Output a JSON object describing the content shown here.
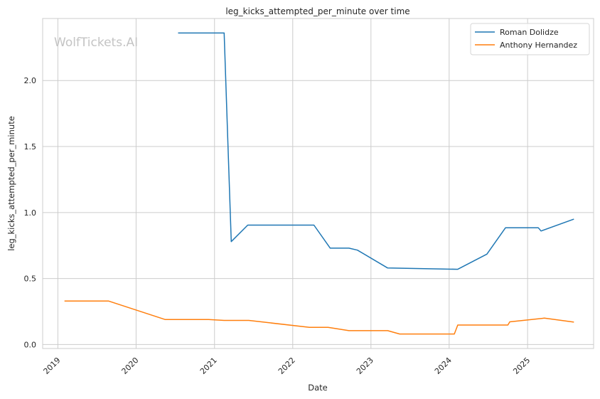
{
  "chart_data": {
    "type": "line",
    "title": "leg_kicks_attempted_per_minute over time",
    "xlabel": "Date",
    "ylabel": "leg_kicks_attempted_per_minute",
    "watermark": "WolfTickets.AI",
    "x_ticks": [
      "2019",
      "2020",
      "2021",
      "2022",
      "2023",
      "2024",
      "2025"
    ],
    "y_ticks": [
      "0.0",
      "0.5",
      "1.0",
      "1.5",
      "2.0"
    ],
    "xlim": [
      "2018-10-22",
      "2025-11-05"
    ],
    "ylim": [
      -0.03,
      2.47
    ],
    "grid": true,
    "legend_position": "top-right",
    "series": [
      {
        "name": "Roman Dolidze",
        "color": "#1f77b4",
        "points": [
          [
            "2020-07-15",
            2.36
          ],
          [
            "2021-02-15",
            2.36
          ],
          [
            "2021-03-20",
            0.78
          ],
          [
            "2021-06-05",
            0.905
          ],
          [
            "2022-04-10",
            0.905
          ],
          [
            "2022-06-25",
            0.73
          ],
          [
            "2022-09-20",
            0.73
          ],
          [
            "2022-10-30",
            0.715
          ],
          [
            "2023-03-20",
            0.58
          ],
          [
            "2024-02-10",
            0.57
          ],
          [
            "2024-06-25",
            0.685
          ],
          [
            "2024-09-20",
            0.885
          ],
          [
            "2025-02-20",
            0.885
          ],
          [
            "2025-03-05",
            0.86
          ],
          [
            "2025-08-05",
            0.95
          ]
        ]
      },
      {
        "name": "Anthony Hernandez",
        "color": "#ff7f0e",
        "points": [
          [
            "2019-02-01",
            0.33
          ],
          [
            "2019-08-25",
            0.33
          ],
          [
            "2020-05-15",
            0.19
          ],
          [
            "2020-12-05",
            0.19
          ],
          [
            "2021-02-15",
            0.183
          ],
          [
            "2021-06-10",
            0.183
          ],
          [
            "2022-03-20",
            0.13
          ],
          [
            "2022-06-15",
            0.13
          ],
          [
            "2022-09-20",
            0.105
          ],
          [
            "2023-03-20",
            0.105
          ],
          [
            "2023-05-15",
            0.08
          ],
          [
            "2024-01-25",
            0.08
          ],
          [
            "2024-02-10",
            0.148
          ],
          [
            "2024-10-01",
            0.148
          ],
          [
            "2024-10-10",
            0.172
          ],
          [
            "2025-03-20",
            0.2
          ],
          [
            "2025-08-05",
            0.17
          ]
        ]
      }
    ]
  }
}
